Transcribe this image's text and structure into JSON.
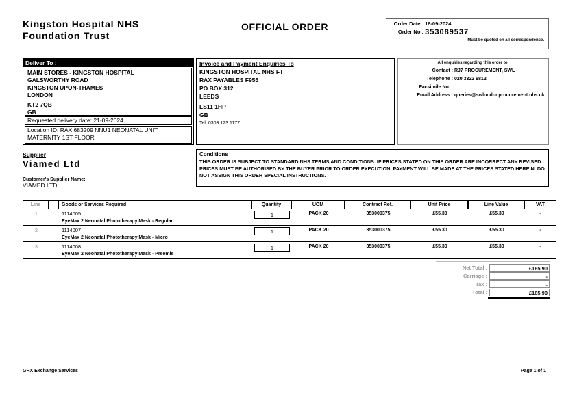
{
  "page": {
    "org_name_line1": "Kingston Hospital NHS",
    "org_name_line2": "Foundation Trust",
    "doc_title": "OFFICIAL ORDER"
  },
  "order_box": {
    "date_label": "Order Date :",
    "date": "18-09-2024",
    "no_label": "Order No :",
    "no": "353089537",
    "note": "Must be quoted on all correspondence."
  },
  "deliver_to": {
    "label": "Deliver To :",
    "address_lines": [
      "MAIN STORES - KINGSTON HOSPITAL",
      "GALSWORTHY ROAD",
      "KINGSTON UPON-THAMES",
      "LONDON",
      "KT2 7QB",
      "GB"
    ],
    "requested_delivery_date": "Requested delivery date: 21-09-2024",
    "location_id_line1": "Location ID: RAX 683209 NNU1 NEONATAL UNIT",
    "location_id_line2": "MATERNITY 1ST FLOOR"
  },
  "invoice_to": {
    "label": "Invoice and Payment Enquiries To",
    "address_lines": [
      "KINGSTON HOSPITAL NHS FT",
      "RAX PAYABLES F955",
      "PO BOX 312",
      "LEEDS",
      "LS11 1HP",
      "GB"
    ],
    "tel": "Tel: 0303 123 1177"
  },
  "enquiries": {
    "heading": "All enquiries regarding this order to:",
    "contact_label": "Contact :",
    "contact": "RJ7 PROCUREMENT, SWL",
    "telephone_label": "Telephone :",
    "telephone": "020 3322 9812",
    "facsimile_label": "Facsimile No. :",
    "facsimile": "",
    "email_label": "Email Address :",
    "email": "queries@swlondonprocurement.nhs.uk"
  },
  "supplier": {
    "label": "Supplier",
    "name": "Viamed Ltd",
    "customer_supplier_label": "Customer's Supplier Name:",
    "customer_supplier_name": "VIAMED LTD"
  },
  "conditions": {
    "label": "Conditions",
    "text": "THIS ORDER IS SUBJECT TO STANDARD NHS TERMS AND CONDITIONS. IF PRICES STATED ON THIS ORDER ARE INCORRECT ANY REVISED PRICES MUST BE AUTHORISED BY THE BUYER PRIOR TO ORDER EXECUTION. PAYMENT WILL BE MADE AT THE PRICES STATED HEREIN. DO NOT ASSIGN THIS ORDER SPECIAL INSTRUCTIONS."
  },
  "table": {
    "headers": [
      "Line",
      "",
      "Goods or Services Required",
      "Quantity",
      "UOM",
      "Contract Ref.",
      "Unit Price",
      "Line Value",
      "VAT"
    ],
    "rows": [
      {
        "line": "1",
        "code": "1114005",
        "description": "EyeMax 2 Neonatal Phototherapy Mask - Regular",
        "quantity": "1",
        "uom": "PACK 20",
        "contract_ref": "353000375",
        "unit_price": "£55.30",
        "line_value": "£55.30",
        "vat": "-"
      },
      {
        "line": "2",
        "code": "1114007",
        "description": "EyeMax 2 Neonatal Phototherapy Mask - Micro",
        "quantity": "1",
        "uom": "PACK 20",
        "contract_ref": "353000375",
        "unit_price": "£55.30",
        "line_value": "£55.30",
        "vat": "-"
      },
      {
        "line": "3",
        "code": "1114008",
        "description": "EyeMax 2 Neonatal Phototherapy Mask - Preemie",
        "quantity": "1",
        "uom": "PACK 20",
        "contract_ref": "353000375",
        "unit_price": "£55.30",
        "line_value": "£55.30",
        "vat": "-"
      }
    ]
  },
  "totals": {
    "net_total_label": "Net Total :",
    "net_total": "£165.90",
    "carriage_label": "Carriage :",
    "carriage": "-",
    "tax_label": "Tax :",
    "tax": "-",
    "total_label": "Total :",
    "total": "£165.90"
  },
  "footer": {
    "left": "GHX Exchange Services",
    "right": "Page 1 of 1"
  },
  "colors": {
    "muted": "#969696",
    "border_dark": "#000000",
    "border_gray": "#8a8a8a"
  }
}
